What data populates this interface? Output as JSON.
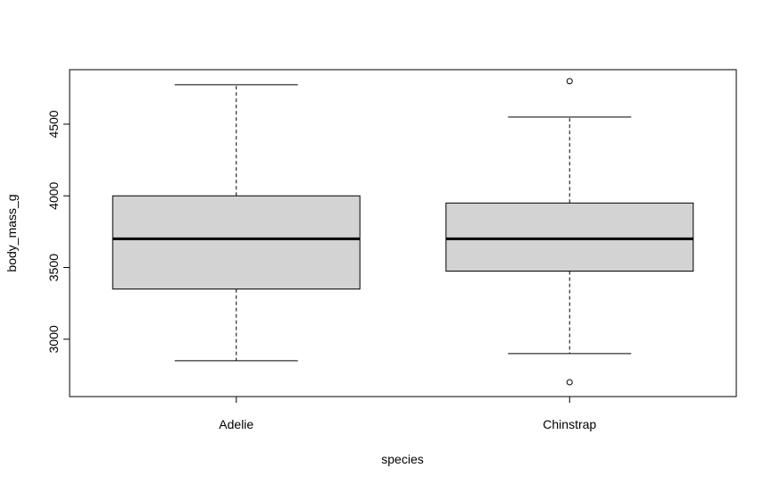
{
  "chart_data": {
    "type": "boxplot",
    "title": "",
    "xlabel": "species",
    "ylabel": "body_mass_g",
    "ylim": [
      2600,
      4880
    ],
    "yticks": [
      3000,
      3500,
      4000,
      4500
    ],
    "categories": [
      "Adelie",
      "Chinstrap"
    ],
    "boxes": [
      {
        "category": "Adelie",
        "whisker_low": 2850,
        "q1": 3350,
        "median": 3700,
        "q3": 4000,
        "whisker_high": 4775,
        "outliers": []
      },
      {
        "category": "Chinstrap",
        "whisker_low": 2900,
        "q1": 3475,
        "median": 3700,
        "q3": 3950,
        "whisker_high": 4550,
        "outliers": [
          4800,
          2700
        ]
      }
    ],
    "box_fill": "#d3d3d3",
    "grid": false,
    "legend": "none"
  }
}
